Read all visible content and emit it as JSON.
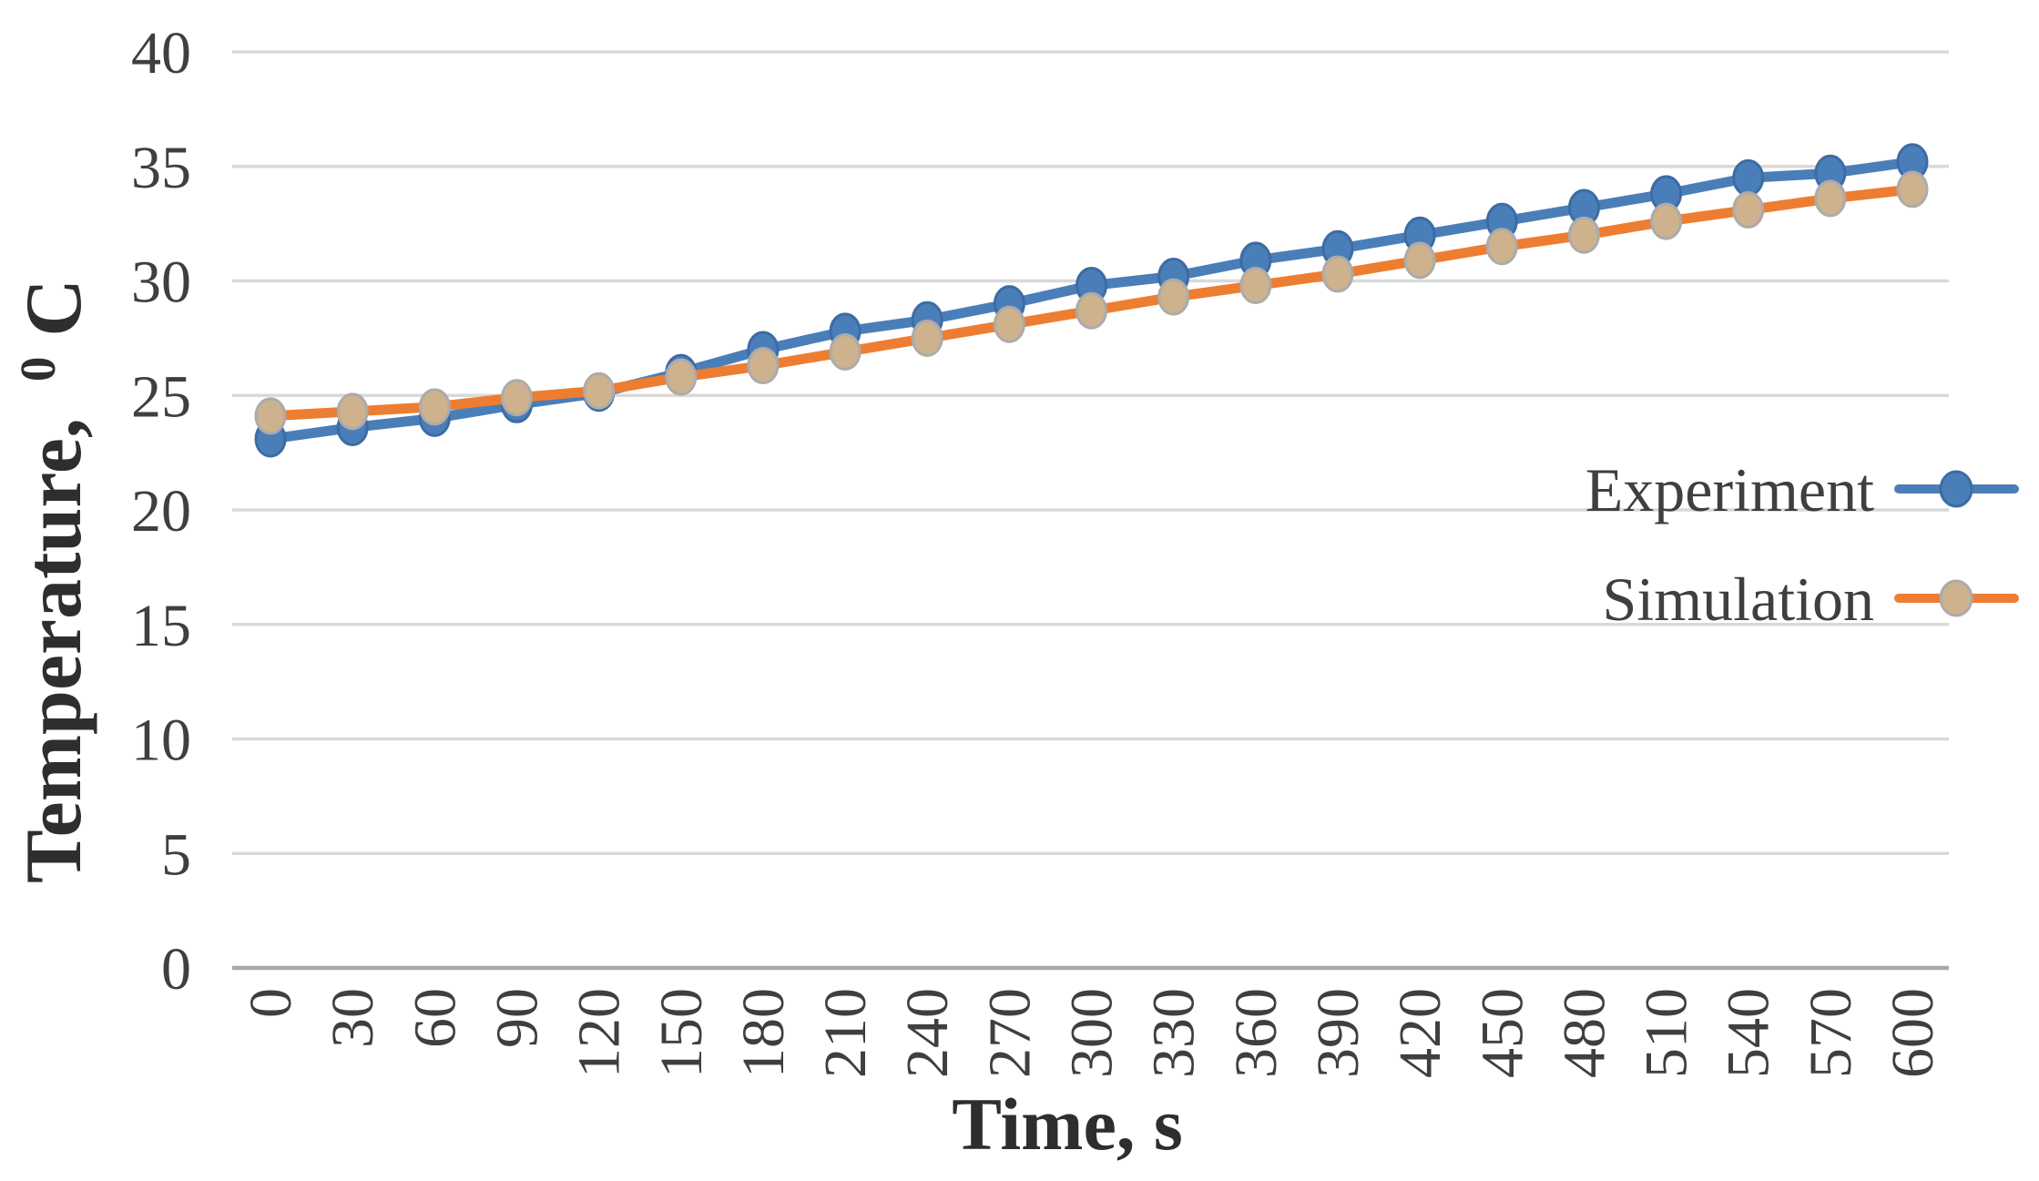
{
  "chart_data": {
    "type": "line",
    "title": "",
    "xlabel": "Time, s",
    "ylabel": "Temperature, 0C",
    "ylabel_parts": {
      "prefix": "Temperature,",
      "superscript": "0",
      "unit": "C"
    },
    "categories": [
      "0",
      "30",
      "60",
      "90",
      "120",
      "150",
      "180",
      "210",
      "240",
      "270",
      "300",
      "330",
      "360",
      "390",
      "420",
      "450",
      "480",
      "510",
      "540",
      "570",
      "600"
    ],
    "series": [
      {
        "name": "Experiment",
        "line_color": "#4A7EB8",
        "marker_fill": "#4A7EB8",
        "marker_stroke": "#3D6BA3",
        "values": [
          23.1,
          23.6,
          24.0,
          24.6,
          25.1,
          26.0,
          27.0,
          27.8,
          28.3,
          29.0,
          29.8,
          30.2,
          30.9,
          31.4,
          32.0,
          32.6,
          33.2,
          33.8,
          34.5,
          34.7,
          35.2
        ]
      },
      {
        "name": "Simulation",
        "line_color": "#ED7D31",
        "marker_fill": "#CDB28D",
        "marker_stroke": "#ABABAB",
        "values": [
          24.1,
          24.3,
          24.5,
          24.9,
          25.2,
          25.8,
          26.3,
          26.9,
          27.5,
          28.1,
          28.7,
          29.3,
          29.8,
          30.3,
          30.9,
          31.5,
          32.0,
          32.6,
          33.1,
          33.6,
          34.0
        ]
      }
    ],
    "ylim": [
      0,
      40
    ],
    "yticks": [
      0,
      5,
      10,
      15,
      20,
      25,
      30,
      35,
      40
    ],
    "grid": true,
    "legend_position": "inside-right-middle"
  },
  "colors": {
    "gridline": "#D9D9D9",
    "axis_line": "#A9A9A9",
    "tick_text": "#3F3F3F",
    "title_text": "#2E2E2E",
    "background": "#FFFFFF"
  }
}
